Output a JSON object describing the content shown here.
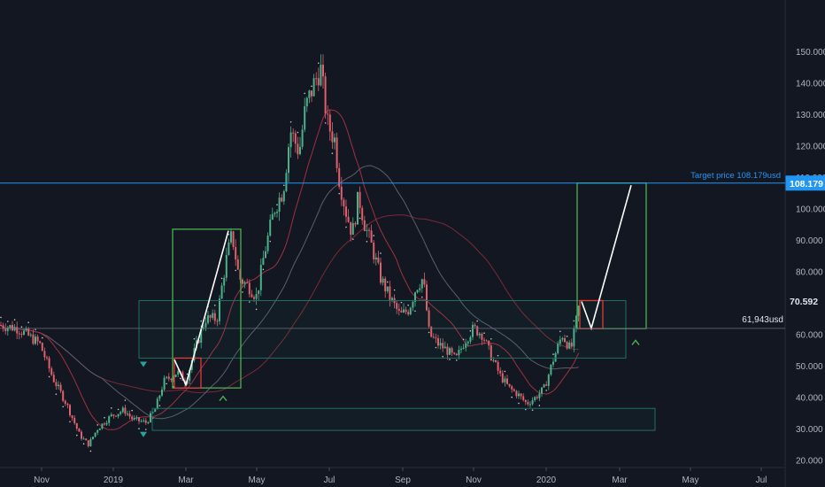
{
  "chart_data": {
    "type": "candlestick",
    "y_axis": {
      "ticks": [
        "150.000",
        "140.000",
        "130.000",
        "120.000",
        "110.000",
        "100.000",
        "90.000",
        "80.000",
        "70.000",
        "60.000",
        "50.000",
        "40.000",
        "30.000",
        "20.000"
      ],
      "range": [
        16,
        152
      ],
      "position": "right"
    },
    "x_axis": {
      "ticks": [
        "Nov",
        "2019",
        "Mar",
        "May",
        "Jul",
        "Sep",
        "Nov",
        "2020",
        "Mar",
        "May",
        "Jul"
      ]
    },
    "price_tags": [
      {
        "value": 108.179,
        "label": "108.179",
        "color": "#2196f3"
      },
      {
        "value": 70.592,
        "label": "70.592",
        "color": "#131722"
      }
    ],
    "annotations": {
      "target_text": "Target price 108.179usd",
      "support_text": "61,943usd",
      "support_value": 61.943,
      "target_value": 108.179
    },
    "series_summary": {
      "start_value": 65,
      "low_2018": 24,
      "high_2019": 147,
      "low_2019_dec": 36,
      "last_value": 70.6
    },
    "colors": {
      "up": "#4cb08a",
      "down": "#e0606c",
      "accent_green": "#4caf50",
      "target_line": "#2196f3",
      "background": "#131722"
    },
    "grid": false
  }
}
